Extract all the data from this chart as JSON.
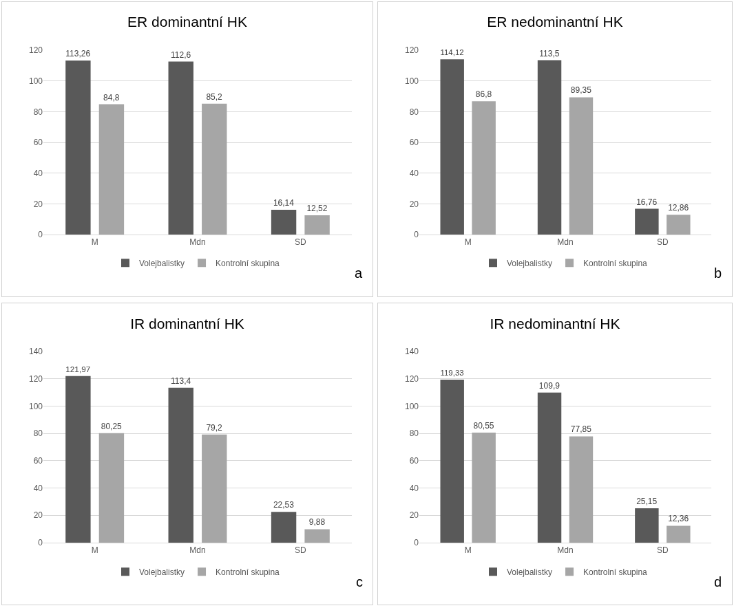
{
  "chart_data": [
    {
      "type": "bar",
      "title": "ER dominantní HK",
      "categories": [
        "M",
        "Mdn",
        "SD"
      ],
      "series": [
        {
          "name": "Volejbalistky",
          "color": "#595959",
          "values": [
            113.26,
            112.6,
            16.14
          ],
          "value_labels": [
            "113,26",
            "112,6",
            "16,14"
          ]
        },
        {
          "name": "Kontrolní skupina",
          "color": "#a6a6a6",
          "values": [
            84.8,
            85.2,
            12.52
          ],
          "value_labels": [
            "84,8",
            "85,2",
            "12,52"
          ]
        }
      ],
      "ylim": [
        0,
        120
      ],
      "yticks": [
        0,
        20,
        40,
        60,
        80,
        100,
        120
      ],
      "grid": "y",
      "legend": "bottom",
      "annotations": [
        "a"
      ]
    },
    {
      "type": "bar",
      "title": "ER nedominantní HK",
      "categories": [
        "M",
        "Mdn",
        "SD"
      ],
      "series": [
        {
          "name": "Volejbalistky",
          "color": "#595959",
          "values": [
            114.12,
            113.5,
            16.76
          ],
          "value_labels": [
            "114,12",
            "113,5",
            "16,76"
          ]
        },
        {
          "name": "Kontrolní skupina",
          "color": "#a6a6a6",
          "values": [
            86.8,
            89.35,
            12.86
          ],
          "value_labels": [
            "86,8",
            "89,35",
            "12,86"
          ]
        }
      ],
      "ylim": [
        0,
        120
      ],
      "yticks": [
        0,
        20,
        40,
        60,
        80,
        100,
        120
      ],
      "grid": "y",
      "legend": "bottom",
      "annotations": [
        "b"
      ]
    },
    {
      "type": "bar",
      "title": "IR dominantní HK",
      "categories": [
        "M",
        "Mdn",
        "SD"
      ],
      "series": [
        {
          "name": "Volejbalistky",
          "color": "#595959",
          "values": [
            121.97,
            113.4,
            22.53
          ],
          "value_labels": [
            "121,97",
            "113,4",
            "22,53"
          ]
        },
        {
          "name": "Kontrolní skupina",
          "color": "#a6a6a6",
          "values": [
            80.25,
            79.2,
            9.88
          ],
          "value_labels": [
            "80,25",
            "79,2",
            "9,88"
          ]
        }
      ],
      "ylim": [
        0,
        140
      ],
      "yticks": [
        0,
        20,
        40,
        60,
        80,
        100,
        120,
        140
      ],
      "grid": "y",
      "legend": "bottom",
      "annotations": [
        "c"
      ]
    },
    {
      "type": "bar",
      "title": "IR nedominantní HK",
      "categories": [
        "M",
        "Mdn",
        "SD"
      ],
      "series": [
        {
          "name": "Volejbalistky",
          "color": "#595959",
          "values": [
            119.33,
            109.9,
            25.15
          ],
          "value_labels": [
            "119,33",
            "109,9",
            "25,15"
          ]
        },
        {
          "name": "Kontrolní skupina",
          "color": "#a6a6a6",
          "values": [
            80.55,
            77.85,
            12.36
          ],
          "value_labels": [
            "80,55",
            "77,85",
            "12,36"
          ]
        }
      ],
      "ylim": [
        0,
        140
      ],
      "yticks": [
        0,
        20,
        40,
        60,
        80,
        100,
        120,
        140
      ],
      "grid": "y",
      "legend": "bottom",
      "annotations": [
        "d"
      ]
    }
  ]
}
